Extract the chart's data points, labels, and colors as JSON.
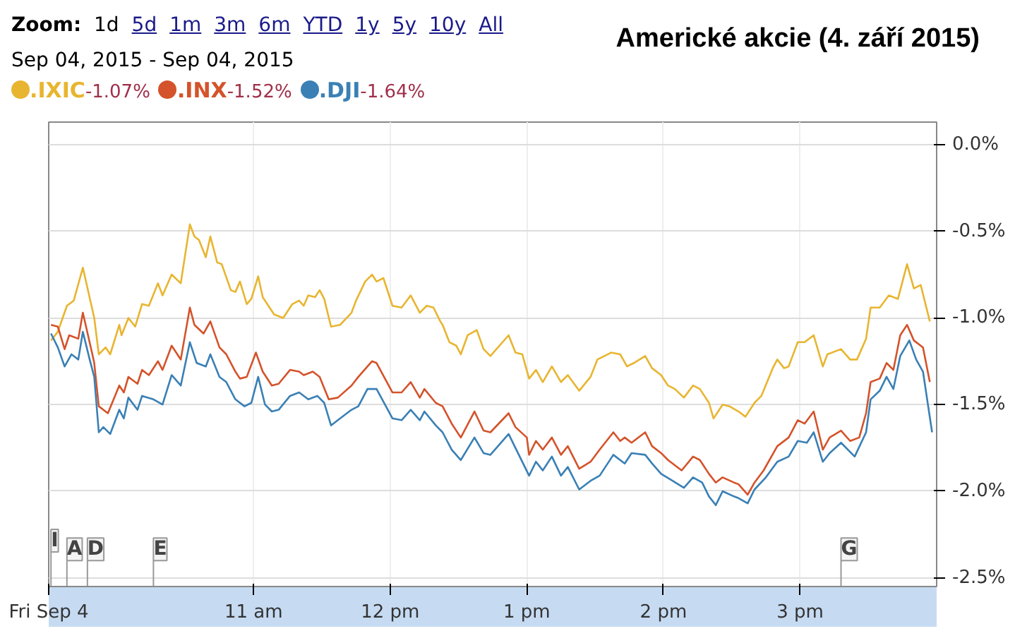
{
  "chart_data": {
    "type": "line",
    "title": "Americké akcie (4. září 2015)",
    "annotations": [
      "Zoom:",
      "1d",
      "5d",
      "1m",
      "3m",
      "6m",
      "YTD",
      "1y",
      "5y",
      "10y",
      "All",
      "Sep 04, 2015  -  Sep 04, 2015",
      "-1.07%",
      "-1.52%",
      "-1.64%"
    ],
    "ref_lines": [
      {
        "axis": "x",
        "value": "2015-09-04T09:31",
        "label": "I"
      },
      {
        "axis": "x",
        "value": "2015-09-04T09:38",
        "label": "A"
      },
      {
        "axis": "x",
        "value": "2015-09-04T09:47",
        "label": "D"
      },
      {
        "axis": "x",
        "value": "2015-09-04T10:16",
        "label": "E"
      },
      {
        "axis": "x",
        "value": "2015-09-04T15:18",
        "label": "G"
      }
    ],
    "xlim": [
      "2015-09-04T09:30",
      "2015-09-04T16:00"
    ],
    "xticks": [
      {
        "value": "2015-09-04T09:30",
        "label": "Fri Sep 4"
      },
      {
        "value": "2015-09-04T11:00",
        "label": "11 am"
      },
      {
        "value": "2015-09-04T12:00",
        "label": "12 pm"
      },
      {
        "value": "2015-09-04T13:00",
        "label": "1 pm"
      },
      {
        "value": "2015-09-04T14:00",
        "label": "2 pm"
      },
      {
        "value": "2015-09-04T15:00",
        "label": "3 pm"
      }
    ],
    "ylim": [
      -2.55,
      0.13
    ],
    "yticks": [
      {
        "value": 0,
        "label": "0.0%"
      },
      {
        "value": -0.5,
        "label": "-0.5%"
      },
      {
        "value": -1,
        "label": "-1.0%"
      },
      {
        "value": -1.5,
        "label": "-1.5%"
      },
      {
        "value": -2,
        "label": "-2.0%"
      },
      {
        "value": -2.5,
        "label": "-2.5%"
      }
    ],
    "grid": true,
    "legend": "top left",
    "marker": "none",
    "line_style": "solid",
    "series": [
      {
        "name": ".IXIC",
        "color": "#e8b530",
        "x": [
          "2015-09-04T09:31",
          "2015-09-04T09:34",
          "2015-09-04T09:38",
          "2015-09-04T09:41",
          "2015-09-04T09:45",
          "2015-09-04T09:50",
          "2015-09-04T09:52",
          "2015-09-04T09:55",
          "2015-09-04T09:57",
          "2015-09-04T10:01",
          "2015-09-04T10:02",
          "2015-09-04T10:05",
          "2015-09-04T10:08",
          "2015-09-04T10:11",
          "2015-09-04T10:14",
          "2015-09-04T10:18",
          "2015-09-04T10:20",
          "2015-09-04T10:24",
          "2015-09-04T10:28",
          "2015-09-04T10:32",
          "2015-09-04T10:34",
          "2015-09-04T10:36",
          "2015-09-04T10:39",
          "2015-09-04T10:41",
          "2015-09-04T10:44",
          "2015-09-04T10:46",
          "2015-09-04T10:50",
          "2015-09-04T10:52",
          "2015-09-04T10:54",
          "2015-09-04T10:57",
          "2015-09-04T10:59",
          "2015-09-04T11:02",
          "2015-09-04T11:04",
          "2015-09-04T11:09",
          "2015-09-04T11:13",
          "2015-09-04T11:17",
          "2015-09-04T11:20",
          "2015-09-04T11:22",
          "2015-09-04T11:24",
          "2015-09-04T11:27",
          "2015-09-04T11:29",
          "2015-09-04T11:31",
          "2015-09-04T11:34",
          "2015-09-04T11:38",
          "2015-09-04T11:43",
          "2015-09-04T11:45",
          "2015-09-04T11:49",
          "2015-09-04T11:52",
          "2015-09-04T11:54",
          "2015-09-04T11:57",
          "2015-09-04T12:01",
          "2015-09-04T12:05",
          "2015-09-04T12:09",
          "2015-09-04T12:13",
          "2015-09-04T12:16",
          "2015-09-04T12:19",
          "2015-09-04T12:22",
          "2015-09-04T12:23",
          "2015-09-04T12:26",
          "2015-09-04T12:29",
          "2015-09-04T12:31",
          "2015-09-04T12:34",
          "2015-09-04T12:38",
          "2015-09-04T12:41",
          "2015-09-04T12:44",
          "2015-09-04T12:52",
          "2015-09-04T12:55",
          "2015-09-04T12:58",
          "2015-09-04T13:01",
          "2015-09-04T13:04",
          "2015-09-04T13:07",
          "2015-09-04T13:11",
          "2015-09-04T13:15",
          "2015-09-04T13:18",
          "2015-09-04T13:23",
          "2015-09-04T13:28",
          "2015-09-04T13:31",
          "2015-09-04T13:37",
          "2015-09-04T13:41",
          "2015-09-04T13:44",
          "2015-09-04T13:47",
          "2015-09-04T13:52",
          "2015-09-04T13:55",
          "2015-09-04T13:59",
          "2015-09-04T14:02",
          "2015-09-04T14:05",
          "2015-09-04T14:09",
          "2015-09-04T14:13",
          "2015-09-04T14:16",
          "2015-09-04T14:20",
          "2015-09-04T14:22",
          "2015-09-04T14:26",
          "2015-09-04T14:29",
          "2015-09-04T14:33",
          "2015-09-04T14:36",
          "2015-09-04T14:40",
          "2015-09-04T14:43",
          "2015-09-04T14:48",
          "2015-09-04T14:50",
          "2015-09-04T14:53",
          "2015-09-04T14:55",
          "2015-09-04T14:59",
          "2015-09-04T15:02",
          "2015-09-04T15:06",
          "2015-09-04T15:10",
          "2015-09-04T15:12",
          "2015-09-04T15:18",
          "2015-09-04T15:22",
          "2015-09-04T15:25",
          "2015-09-04T15:29",
          "2015-09-04T15:31",
          "2015-09-04T15:35",
          "2015-09-04T15:39",
          "2015-09-04T15:43",
          "2015-09-04T15:47",
          "2015-09-04T15:50",
          "2015-09-04T15:53",
          "2015-09-04T15:57"
        ],
        "values": [
          -1.13,
          -1.08,
          -0.93,
          -0.9,
          -0.71,
          -1.0,
          -1.21,
          -1.17,
          -1.21,
          -1.04,
          -1.1,
          -1.0,
          -1.05,
          -0.92,
          -0.93,
          -0.8,
          -0.87,
          -0.75,
          -0.8,
          -0.46,
          -0.53,
          -0.55,
          -0.65,
          -0.53,
          -0.68,
          -0.69,
          -0.84,
          -0.85,
          -0.79,
          -0.92,
          -0.89,
          -0.76,
          -0.88,
          -0.98,
          -1.0,
          -0.92,
          -0.9,
          -0.93,
          -0.87,
          -0.88,
          -0.84,
          -0.89,
          -1.05,
          -1.04,
          -0.97,
          -0.9,
          -0.79,
          -0.75,
          -0.79,
          -0.77,
          -0.93,
          -0.94,
          -0.87,
          -0.97,
          -0.93,
          -0.94,
          -1.02,
          -1.04,
          -1.14,
          -1.16,
          -1.21,
          -1.1,
          -1.07,
          -1.18,
          -1.22,
          -1.1,
          -1.2,
          -1.21,
          -1.35,
          -1.3,
          -1.37,
          -1.28,
          -1.37,
          -1.33,
          -1.42,
          -1.34,
          -1.24,
          -1.2,
          -1.21,
          -1.28,
          -1.26,
          -1.22,
          -1.29,
          -1.33,
          -1.39,
          -1.41,
          -1.46,
          -1.39,
          -1.41,
          -1.49,
          -1.58,
          -1.5,
          -1.51,
          -1.54,
          -1.57,
          -1.49,
          -1.45,
          -1.29,
          -1.24,
          -1.29,
          -1.28,
          -1.14,
          -1.14,
          -1.1,
          -1.28,
          -1.21,
          -1.18,
          -1.24,
          -1.24,
          -1.12,
          -0.94,
          -0.94,
          -0.87,
          -0.89,
          -0.69,
          -0.83,
          -0.81,
          -1.02
        ]
      },
      {
        "name": ".INX",
        "color": "#d4532b",
        "x": [
          "2015-09-04T09:31",
          "2015-09-04T09:34",
          "2015-09-04T09:37",
          "2015-09-04T09:39",
          "2015-09-04T09:43",
          "2015-09-04T09:45",
          "2015-09-04T09:49",
          "2015-09-04T09:50",
          "2015-09-04T09:52",
          "2015-09-04T09:56",
          "2015-09-04T10:01",
          "2015-09-04T10:03",
          "2015-09-04T10:05",
          "2015-09-04T10:09",
          "2015-09-04T10:11",
          "2015-09-04T10:14",
          "2015-09-04T10:18",
          "2015-09-04T10:20",
          "2015-09-04T10:24",
          "2015-09-04T10:28",
          "2015-09-04T10:32",
          "2015-09-04T10:34",
          "2015-09-04T10:38",
          "2015-09-04T10:41",
          "2015-09-04T10:45",
          "2015-09-04T10:48",
          "2015-09-04T10:52",
          "2015-09-04T10:54",
          "2015-09-04T10:57",
          "2015-09-04T11:01",
          "2015-09-04T11:04",
          "2015-09-04T11:08",
          "2015-09-04T11:11",
          "2015-09-04T11:16",
          "2015-09-04T11:20",
          "2015-09-04T11:22",
          "2015-09-04T11:26",
          "2015-09-04T11:29",
          "2015-09-04T11:33",
          "2015-09-04T11:37",
          "2015-09-04T11:43",
          "2015-09-04T11:46",
          "2015-09-04T11:52",
          "2015-09-04T11:54",
          "2015-09-04T12:01",
          "2015-09-04T12:05",
          "2015-09-04T12:09",
          "2015-09-04T12:13",
          "2015-09-04T12:15",
          "2015-09-04T12:20",
          "2015-09-04T12:23",
          "2015-09-04T12:27",
          "2015-09-04T12:31",
          "2015-09-04T12:37",
          "2015-09-04T12:41",
          "2015-09-04T12:44",
          "2015-09-04T12:52",
          "2015-09-04T12:55",
          "2015-09-04T13:00",
          "2015-09-04T13:01",
          "2015-09-04T13:04",
          "2015-09-04T13:07",
          "2015-09-04T13:11",
          "2015-09-04T13:15",
          "2015-09-04T13:18",
          "2015-09-04T13:23",
          "2015-09-04T13:28",
          "2015-09-04T13:32",
          "2015-09-04T13:38",
          "2015-09-04T13:41",
          "2015-09-04T13:43",
          "2015-09-04T13:46",
          "2015-09-04T13:52",
          "2015-09-04T13:55",
          "2015-09-04T13:59",
          "2015-09-04T14:02",
          "2015-09-04T14:08",
          "2015-09-04T14:13",
          "2015-09-04T14:16",
          "2015-09-04T14:20",
          "2015-09-04T14:23",
          "2015-09-04T14:26",
          "2015-09-04T14:31",
          "2015-09-04T14:33",
          "2015-09-04T14:37",
          "2015-09-04T14:40",
          "2015-09-04T14:44",
          "2015-09-04T14:50",
          "2015-09-04T14:55",
          "2015-09-04T14:59",
          "2015-09-04T15:02",
          "2015-09-04T15:06",
          "2015-09-04T15:10",
          "2015-09-04T15:13",
          "2015-09-04T15:18",
          "2015-09-04T15:22",
          "2015-09-04T15:26",
          "2015-09-04T15:29",
          "2015-09-04T15:31",
          "2015-09-04T15:35",
          "2015-09-04T15:38",
          "2015-09-04T15:41",
          "2015-09-04T15:44",
          "2015-09-04T15:47",
          "2015-09-04T15:50",
          "2015-09-04T15:54",
          "2015-09-04T15:57"
        ],
        "values": [
          -1.04,
          -1.05,
          -1.18,
          -1.1,
          -1.12,
          -0.97,
          -1.2,
          -1.26,
          -1.51,
          -1.55,
          -1.39,
          -1.43,
          -1.34,
          -1.38,
          -1.3,
          -1.33,
          -1.25,
          -1.3,
          -1.16,
          -1.24,
          -0.94,
          -1.04,
          -1.09,
          -1.02,
          -1.17,
          -1.21,
          -1.31,
          -1.35,
          -1.34,
          -1.2,
          -1.31,
          -1.39,
          -1.38,
          -1.3,
          -1.31,
          -1.33,
          -1.31,
          -1.34,
          -1.47,
          -1.46,
          -1.39,
          -1.34,
          -1.25,
          -1.26,
          -1.43,
          -1.43,
          -1.37,
          -1.46,
          -1.41,
          -1.49,
          -1.51,
          -1.61,
          -1.69,
          -1.54,
          -1.65,
          -1.66,
          -1.55,
          -1.63,
          -1.69,
          -1.79,
          -1.71,
          -1.76,
          -1.69,
          -1.79,
          -1.74,
          -1.87,
          -1.83,
          -1.76,
          -1.66,
          -1.71,
          -1.69,
          -1.72,
          -1.66,
          -1.74,
          -1.78,
          -1.82,
          -1.88,
          -1.8,
          -1.82,
          -1.9,
          -1.95,
          -1.92,
          -1.95,
          -1.96,
          -2.02,
          -1.95,
          -1.88,
          -1.74,
          -1.69,
          -1.59,
          -1.61,
          -1.54,
          -1.76,
          -1.69,
          -1.65,
          -1.71,
          -1.69,
          -1.55,
          -1.37,
          -1.35,
          -1.26,
          -1.3,
          -1.1,
          -1.04,
          -1.13,
          -1.17,
          -1.37
        ]
      },
      {
        "name": ".DJI",
        "color": "#3a80b5",
        "x": [
          "2015-09-04T09:31",
          "2015-09-04T09:34",
          "2015-09-04T09:37",
          "2015-09-04T09:40",
          "2015-09-04T09:43",
          "2015-09-04T09:45",
          "2015-09-04T09:48",
          "2015-09-04T09:50",
          "2015-09-04T09:52",
          "2015-09-04T09:54",
          "2015-09-04T09:57",
          "2015-09-04T10:01",
          "2015-09-04T10:03",
          "2015-09-04T10:05",
          "2015-09-04T10:09",
          "2015-09-04T10:11",
          "2015-09-04T10:16",
          "2015-09-04T10:20",
          "2015-09-04T10:24",
          "2015-09-04T10:28",
          "2015-09-04T10:32",
          "2015-09-04T10:35",
          "2015-09-04T10:39",
          "2015-09-04T10:41",
          "2015-09-04T10:45",
          "2015-09-04T10:48",
          "2015-09-04T10:52",
          "2015-09-04T10:56",
          "2015-09-04T10:59",
          "2015-09-04T11:02",
          "2015-09-04T11:05",
          "2015-09-04T11:08",
          "2015-09-04T11:11",
          "2015-09-04T11:16",
          "2015-09-04T11:20",
          "2015-09-04T11:24",
          "2015-09-04T11:28",
          "2015-09-04T11:31",
          "2015-09-04T11:34",
          "2015-09-04T11:37",
          "2015-09-04T11:43",
          "2015-09-04T11:46",
          "2015-09-04T11:50",
          "2015-09-04T11:54",
          "2015-09-04T12:01",
          "2015-09-04T12:05",
          "2015-09-04T12:09",
          "2015-09-04T12:13",
          "2015-09-04T12:15",
          "2015-09-04T12:20",
          "2015-09-04T12:23",
          "2015-09-04T12:27",
          "2015-09-04T12:31",
          "2015-09-04T12:37",
          "2015-09-04T12:41",
          "2015-09-04T12:44",
          "2015-09-04T12:52",
          "2015-09-04T12:55",
          "2015-09-04T13:01",
          "2015-09-04T13:04",
          "2015-09-04T13:07",
          "2015-09-04T13:11",
          "2015-09-04T13:15",
          "2015-09-04T13:18",
          "2015-09-04T13:23",
          "2015-09-04T13:28",
          "2015-09-04T13:32",
          "2015-09-04T13:38",
          "2015-09-04T13:43",
          "2015-09-04T13:46",
          "2015-09-04T13:52",
          "2015-09-04T13:55",
          "2015-09-04T13:59",
          "2015-09-04T14:04",
          "2015-09-04T14:09",
          "2015-09-04T14:13",
          "2015-09-04T14:17",
          "2015-09-04T14:20",
          "2015-09-04T14:23",
          "2015-09-04T14:26",
          "2015-09-04T14:31",
          "2015-09-04T14:33",
          "2015-09-04T14:37",
          "2015-09-04T14:40",
          "2015-09-04T14:45",
          "2015-09-04T14:50",
          "2015-09-04T14:55",
          "2015-09-04T14:59",
          "2015-09-04T15:03",
          "2015-09-04T15:06",
          "2015-09-04T15:10",
          "2015-09-04T15:13",
          "2015-09-04T15:18",
          "2015-09-04T15:24",
          "2015-09-04T15:29",
          "2015-09-04T15:31",
          "2015-09-04T15:35",
          "2015-09-04T15:38",
          "2015-09-04T15:41",
          "2015-09-04T15:44",
          "2015-09-04T15:48",
          "2015-09-04T15:51",
          "2015-09-04T15:54",
          "2015-09-04T15:58"
        ],
        "values": [
          -1.09,
          -1.17,
          -1.28,
          -1.21,
          -1.24,
          -1.08,
          -1.24,
          -1.34,
          -1.66,
          -1.63,
          -1.67,
          -1.53,
          -1.58,
          -1.46,
          -1.53,
          -1.45,
          -1.47,
          -1.5,
          -1.33,
          -1.39,
          -1.14,
          -1.26,
          -1.28,
          -1.21,
          -1.34,
          -1.37,
          -1.47,
          -1.51,
          -1.49,
          -1.34,
          -1.5,
          -1.54,
          -1.53,
          -1.45,
          -1.43,
          -1.47,
          -1.45,
          -1.49,
          -1.62,
          -1.59,
          -1.53,
          -1.51,
          -1.41,
          -1.41,
          -1.58,
          -1.59,
          -1.53,
          -1.59,
          -1.54,
          -1.62,
          -1.66,
          -1.76,
          -1.82,
          -1.69,
          -1.78,
          -1.79,
          -1.67,
          -1.75,
          -1.91,
          -1.83,
          -1.88,
          -1.8,
          -1.91,
          -1.86,
          -1.99,
          -1.94,
          -1.91,
          -1.79,
          -1.84,
          -1.78,
          -1.79,
          -1.84,
          -1.9,
          -1.94,
          -1.98,
          -1.92,
          -1.95,
          -2.03,
          -2.08,
          -2.0,
          -2.03,
          -2.04,
          -2.07,
          -1.99,
          -1.92,
          -1.83,
          -1.8,
          -1.71,
          -1.72,
          -1.66,
          -1.83,
          -1.78,
          -1.72,
          -1.8,
          -1.66,
          -1.47,
          -1.42,
          -1.34,
          -1.41,
          -1.22,
          -1.13,
          -1.24,
          -1.31,
          -1.66
        ]
      }
    ]
  }
}
